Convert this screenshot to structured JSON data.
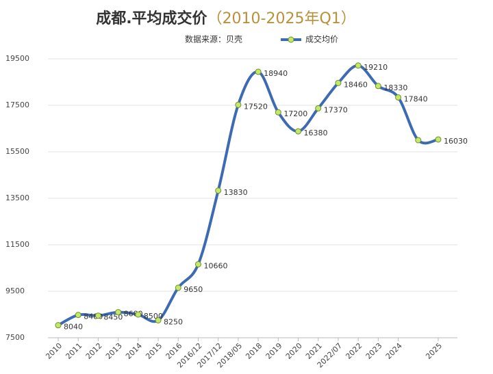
{
  "chart_data": {
    "type": "line",
    "title": "成都.平均成交价",
    "title_period": "（2010-2025年Q1）",
    "subtitle": "数据来源：贝壳",
    "categories": [
      "2010",
      "2011",
      "2012",
      "2013",
      "2014",
      "2015",
      "2016",
      "2016/12",
      "2017/12",
      "2018/05",
      "2018",
      "2019",
      "2020",
      "2021",
      "2022/07",
      "2022",
      "2023",
      "2024",
      null,
      "2025"
    ],
    "series": [
      {
        "name": "成交均价",
        "color": "#3d6bb3",
        "marker_color": "#c6e86a",
        "values": [
          8040,
          8480,
          8450,
          8600,
          8500,
          8250,
          9650,
          10660,
          13830,
          17520,
          18940,
          17200,
          16380,
          17370,
          18460,
          19210,
          18330,
          17840,
          16000,
          16030
        ],
        "value_labels": [
          "8040",
          "8480",
          "8450",
          "8600",
          "8500",
          "8250",
          "9650",
          "10660",
          "13830",
          "17520",
          "18940",
          "17200",
          "16380",
          "17370",
          "18460",
          "19210",
          "18330",
          "17840",
          null,
          "16030"
        ]
      }
    ],
    "ylim": [
      7500,
      19500
    ],
    "yticks": [
      7500,
      9500,
      11500,
      13500,
      15500,
      17500,
      19500
    ],
    "grid": true,
    "smooth": true
  }
}
